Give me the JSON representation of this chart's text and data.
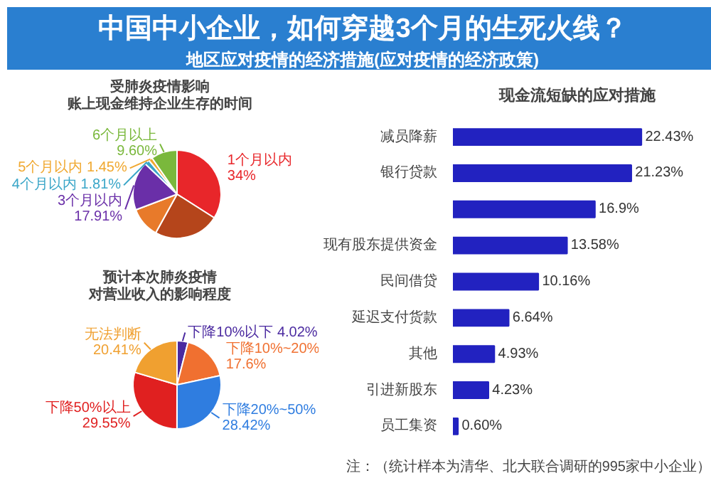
{
  "chart_data": [
    {
      "type": "pie",
      "title": "中国中小企业，如何穿越3个月的生死火线？",
      "subtitle": "地区应对疫情的经济措施(应对疫情的经济政策)",
      "legend_title": [
        "受肺炎疫情影响",
        "账上现金维持企业生存的时间"
      ],
      "categories": [
        "1个月以内",
        null,
        null,
        "3个月以内",
        "4个月以内",
        "5个月以内",
        "6个月以上"
      ],
      "values": [
        34,
        24.0,
        11.2,
        17.91,
        1.81,
        1.45,
        9.6
      ],
      "value_labels": [
        "34%",
        null,
        null,
        "17.91%",
        "1.81%",
        "1.45%",
        "9.60%"
      ],
      "colors": [
        "#e8262a",
        "#b5451b",
        "#e87a2a",
        "#6a2fa8",
        "#3aa6c8",
        "#f0a830",
        "#7ab83c"
      ]
    },
    {
      "type": "pie",
      "legend_title": [
        "预计本次肺炎疫情",
        "对营业收入的影响程度"
      ],
      "categories": [
        "下降10%以下",
        "下降10%~20%",
        "下降20%~50%",
        "下降50%以上",
        "无法判断"
      ],
      "values": [
        4.02,
        17.6,
        28.42,
        29.55,
        20.41
      ],
      "value_labels": [
        "4.02%",
        "17.6%",
        "28.42%",
        "29.55%",
        "20.41%"
      ],
      "colors": [
        "#4b2aa0",
        "#f07030",
        "#2f7de0",
        "#e02020",
        "#f0a030"
      ]
    },
    {
      "type": "bar",
      "orientation": "horizontal",
      "title": "现金流短缺的应对措施",
      "categories": [
        "减员降薪",
        "银行贷款",
        null,
        "现有股东提供资金",
        "民间借贷",
        "延迟支付货款",
        "其他",
        "引进新股东",
        "员工集资"
      ],
      "values": [
        22.43,
        21.23,
        16.9,
        13.58,
        10.16,
        6.64,
        4.93,
        4.23,
        0.6
      ],
      "value_labels": [
        "22.43%",
        "21.23%",
        "16.9%",
        "13.58%",
        "10.16%",
        "6.64%",
        "4.93%",
        "4.23%",
        "0.60%"
      ],
      "color": "#2222c0",
      "annotations": [
        "注：（统计样本为清华、北大联合调研的995家中小企业）"
      ]
    }
  ]
}
